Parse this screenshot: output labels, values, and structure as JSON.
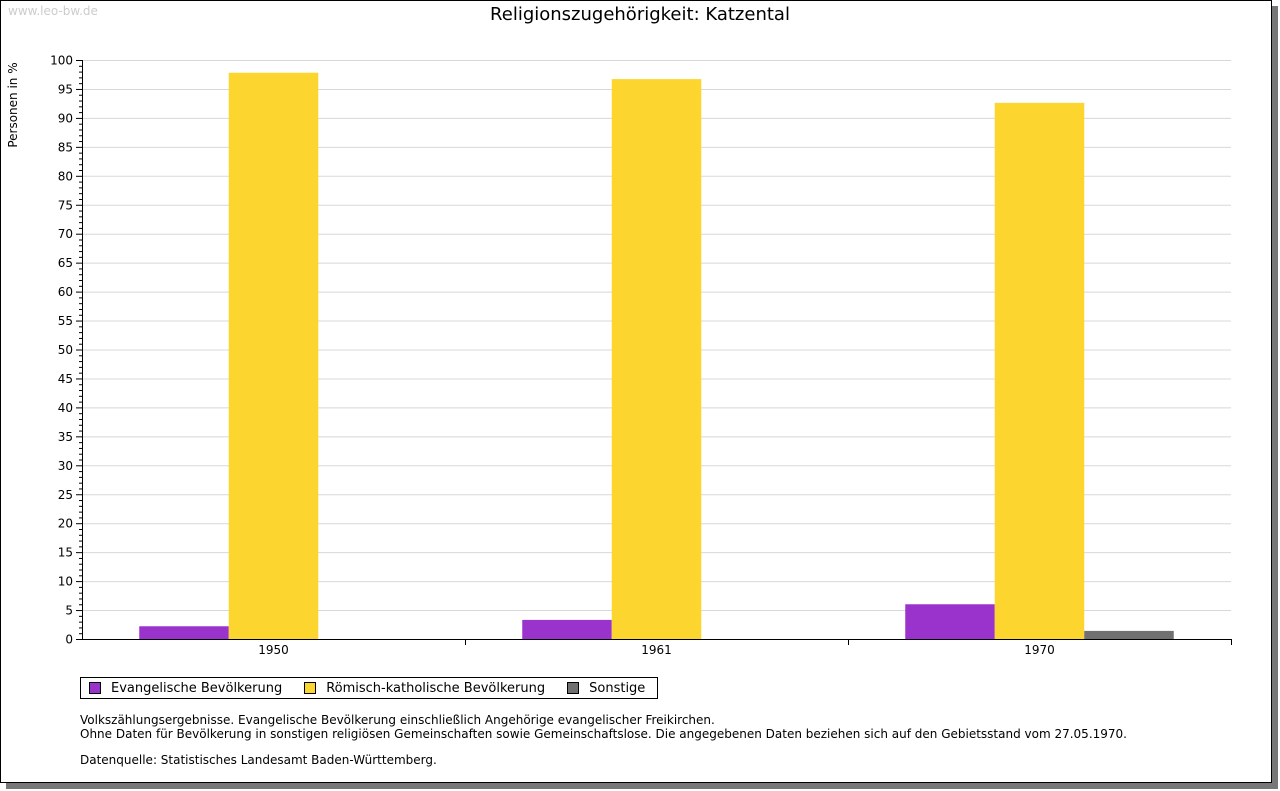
{
  "watermark": "www.leo-bw.de",
  "footnotes": [
    "Volkszählungsergebnisse. Evangelische Bevölkerung einschließlich Angehörige evangelischer Freikirchen.",
    "Ohne Daten für Bevölkerung in sonstigen religiösen Gemeinschaften sowie Gemeinschaftslose. Die angegebenen Daten beziehen sich auf den Gebietsstand vom 27.05.1970.",
    "Datenquelle: Statistisches Landesamt Baden-Württemberg."
  ],
  "chart_data": {
    "type": "bar",
    "title": "Religionszugehörigkeit: Katzental",
    "xlabel": "",
    "ylabel": "Personen in %",
    "ylim": [
      0,
      100
    ],
    "yticks": [
      "0",
      "5",
      "10",
      "15",
      "20",
      "25",
      "30",
      "35",
      "40",
      "45",
      "50",
      "55",
      "60",
      "65",
      "70",
      "75",
      "80",
      "85",
      "90",
      "95",
      "100"
    ],
    "categories": [
      "1950",
      "1961",
      "1970"
    ],
    "grid": true,
    "legend_position": "bottom-left",
    "series": [
      {
        "name": "Evangelische Bevölkerung",
        "color": "#9933cc",
        "values": [
          2.2,
          3.3,
          6.0
        ]
      },
      {
        "name": "Römisch-katholische Bevölkerung",
        "color": "#fcd52e",
        "values": [
          97.8,
          96.7,
          92.6
        ]
      },
      {
        "name": "Sonstige",
        "color": "#707070",
        "values": [
          0,
          0,
          1.4
        ]
      }
    ]
  }
}
